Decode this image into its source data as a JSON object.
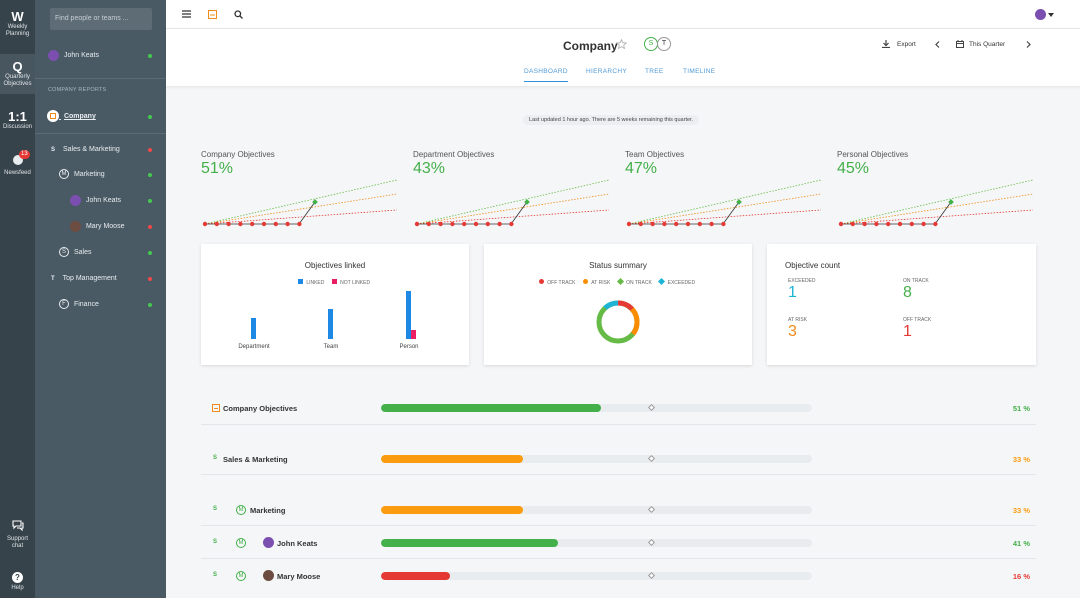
{
  "rail": {
    "items": [
      {
        "big": "W",
        "label1": "Weekly",
        "label2": "Planning"
      },
      {
        "big": "Q",
        "label1": "Quarterly",
        "label2": "Objectives"
      },
      {
        "big": "1:1",
        "label1": "Discussion",
        "label2": ""
      },
      {
        "big": "",
        "label1": "Newsfeed",
        "label2": "",
        "badge": "13"
      }
    ],
    "support": {
      "label1": "Support",
      "label2": "chat"
    },
    "help": {
      "label": "Help"
    }
  },
  "sidebar": {
    "search_placeholder": "Find people or teams ...",
    "user": "John Keats",
    "section_label": "COMPANY REPORTS",
    "company": "Company",
    "items": [
      {
        "letter": "S",
        "label": "Sales & Marketing",
        "status": "r"
      },
      {
        "letter": "M",
        "label": "Marketing",
        "status": "g"
      },
      {
        "letter": "",
        "label": "John Keats",
        "status": "g"
      },
      {
        "letter": "",
        "label": "Mary Moose",
        "status": "r"
      },
      {
        "letter": "S",
        "label": "Sales",
        "status": "g"
      },
      {
        "letter": "T",
        "label": "Top Management",
        "status": "r"
      },
      {
        "letter": "F",
        "label": "Finance",
        "status": "g"
      }
    ]
  },
  "header": {
    "title": "Company",
    "owners": [
      "S",
      "T"
    ],
    "export_label": "Export",
    "period_label": "This Quarter",
    "tabs": [
      "DASHBOARD",
      "HIERARCHY",
      "TREE",
      "TIMELINE"
    ]
  },
  "notice": "Last updated 1 hour ago. There are 5 weeks remaining this quarter.",
  "mini_charts": [
    {
      "name": "Company Objectives",
      "pct": "51%"
    },
    {
      "name": "Department Objectives",
      "pct": "43%"
    },
    {
      "name": "Team Objectives",
      "pct": "47%"
    },
    {
      "name": "Personal Objectives",
      "pct": "45%"
    }
  ],
  "linked_card": {
    "title": "Objectives linked",
    "legend_linked": "LINKED",
    "legend_not_linked": "NOT LINKED",
    "bars": [
      {
        "label": "Department",
        "linked": 0.35,
        "not_linked": 0
      },
      {
        "label": "Team",
        "linked": 0.5,
        "not_linked": 0
      },
      {
        "label": "Person",
        "linked": 0.8,
        "not_linked": 0.15
      }
    ]
  },
  "status_card": {
    "title": "Status summary",
    "legend": [
      "OFF TRACK",
      "AT RISK",
      "ON TRACK",
      "EXCEEDED"
    ],
    "colors": {
      "off": "#e53935",
      "risk": "#fb8c00",
      "on": "#66bb46",
      "exceeded": "#1eb4d6"
    }
  },
  "count_card": {
    "title": "Objective count",
    "items": [
      {
        "label": "EXCEEDED",
        "value": "1",
        "color": "#1eb4d6"
      },
      {
        "label": "ON TRACK",
        "value": "8",
        "color": "#43b04a"
      },
      {
        "label": "AT RISK",
        "value": "3",
        "color": "#f08c1a"
      },
      {
        "label": "OFF TRACK",
        "value": "1",
        "color": "#e53935"
      }
    ]
  },
  "rows": [
    {
      "name": "Company Objectives",
      "pct": "51 %",
      "progress": 0.51,
      "color": "#43b04a"
    },
    {
      "name": "Sales & Marketing",
      "pct": "33 %",
      "progress": 0.33,
      "color": "#fb9b0f"
    },
    {
      "name": "Marketing",
      "pct": "33 %",
      "progress": 0.33,
      "color": "#fb9b0f"
    },
    {
      "name": "John Keats",
      "pct": "41 %",
      "progress": 0.41,
      "color": "#43b04a"
    },
    {
      "name": "Mary Moose",
      "pct": "16 %",
      "progress": 0.16,
      "color": "#e53935"
    }
  ]
}
